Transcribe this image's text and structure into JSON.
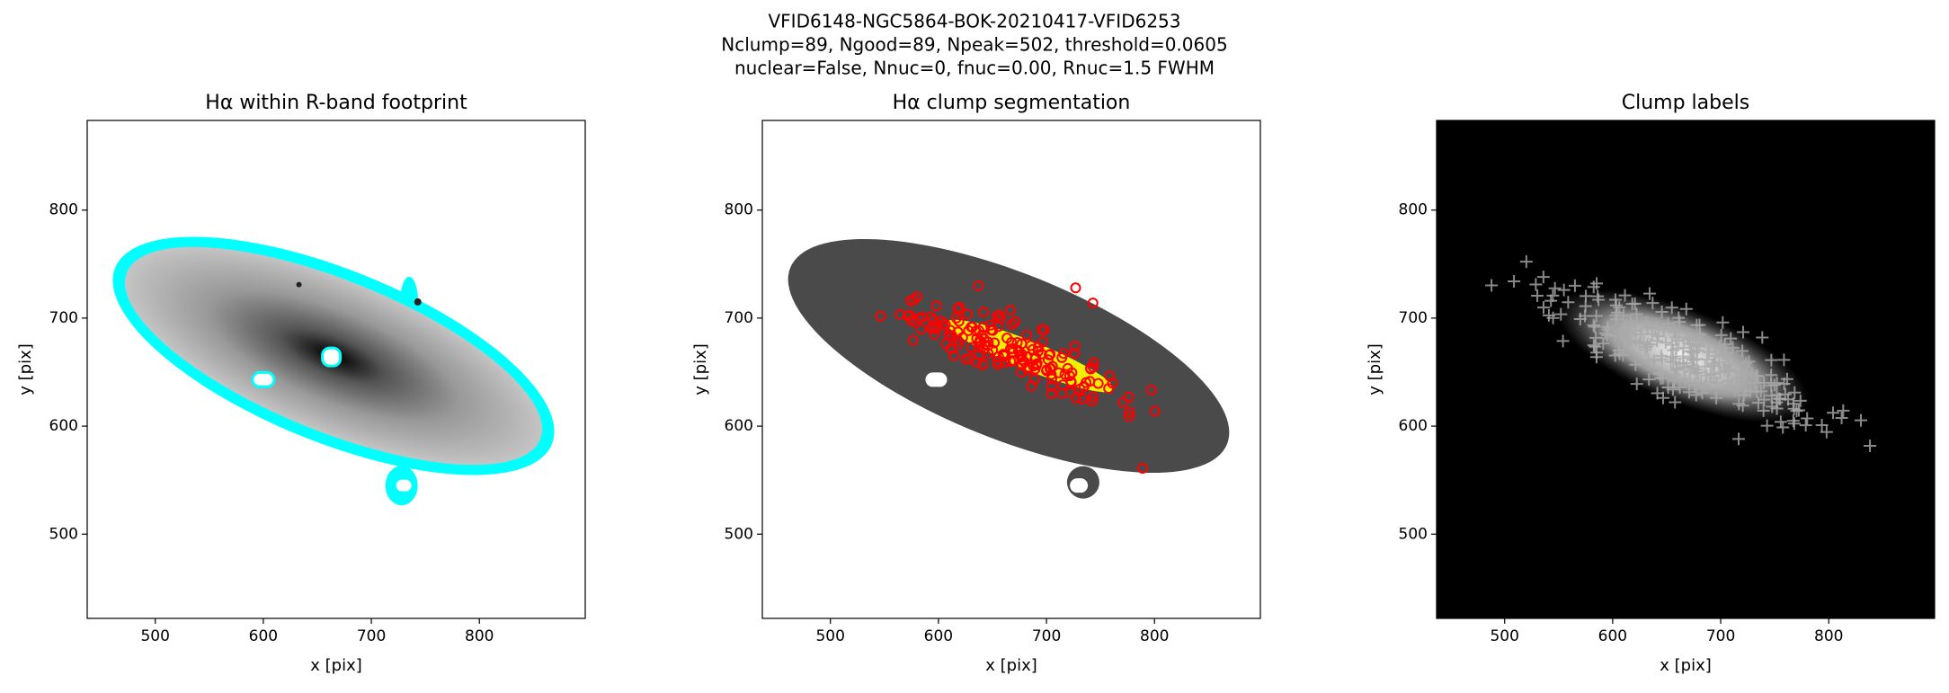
{
  "figure_title": [
    "VFID6148-NGC5864-BOK-20210417-VFID6253",
    "Nclump=89, Ngood=89, Npeak=502, threshold=0.0605",
    "nuclear=False, Nnuc=0, fnuc=0.00, Rnuc=1.5 FWHM"
  ],
  "chart_data": [
    {
      "type": "image",
      "title": "Hα within R-band footprint",
      "xlabel": "x [pix]",
      "ylabel": "y [pix]",
      "xlim": [
        437,
        898
      ],
      "ylim": [
        422,
        883
      ],
      "xticks": [
        500,
        600,
        700,
        800
      ],
      "yticks": [
        500,
        600,
        700,
        800
      ]
    },
    {
      "type": "image",
      "title": "Hα clump segmentation",
      "xlabel": "x [pix]",
      "ylabel": "y [pix]",
      "xlim": [
        437,
        898
      ],
      "ylim": [
        422,
        883
      ],
      "xticks": [
        500,
        600,
        700,
        800
      ],
      "yticks": [
        500,
        600,
        700,
        800
      ]
    },
    {
      "type": "image",
      "title": "Clump labels",
      "xlabel": "x [pix]",
      "ylabel": "y [pix]",
      "xlim": [
        437,
        898
      ],
      "ylim": [
        422,
        883
      ],
      "xticks": [
        500,
        600,
        700,
        800
      ],
      "yticks": [
        500,
        600,
        700,
        800
      ]
    }
  ]
}
